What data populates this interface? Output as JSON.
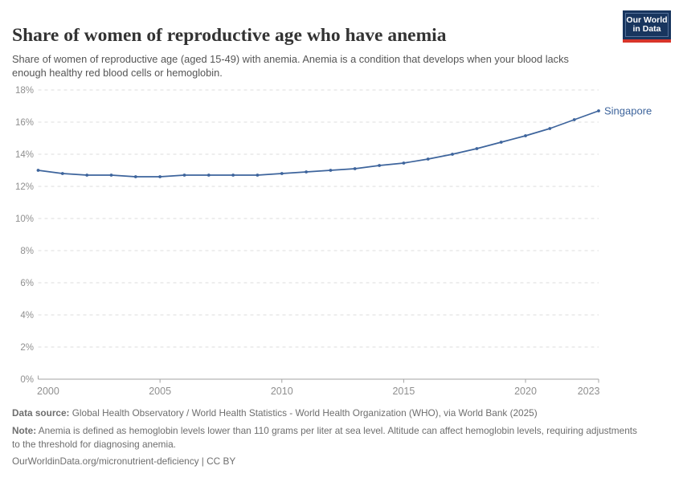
{
  "header": {
    "title": "Share of women of reproductive age who have anemia",
    "subtitle": "Share of women of reproductive age (aged 15-49) with anemia. Anemia is a condition that develops when your blood lacks enough healthy red blood cells or hemoglobin.",
    "logo": {
      "line1": "Our World",
      "line2": "in Data"
    }
  },
  "chart_data": {
    "type": "line",
    "title": "Share of women of reproductive age who have anemia",
    "entity_label": "Singapore",
    "x": [
      2000,
      2001,
      2002,
      2003,
      2004,
      2005,
      2006,
      2007,
      2008,
      2009,
      2010,
      2011,
      2012,
      2013,
      2014,
      2015,
      2016,
      2017,
      2018,
      2019,
      2020,
      2021,
      2022,
      2023
    ],
    "series": [
      {
        "name": "Singapore",
        "values": [
          13.0,
          12.8,
          12.7,
          12.7,
          12.6,
          12.6,
          12.7,
          12.7,
          12.7,
          12.7,
          12.8,
          12.9,
          13.0,
          13.1,
          13.3,
          13.45,
          13.7,
          14.0,
          14.35,
          14.75,
          15.15,
          15.6,
          16.15,
          16.7
        ]
      }
    ],
    "xlim": [
      2000,
      2023
    ],
    "ylim": [
      0,
      18
    ],
    "xticks": [
      2000,
      2005,
      2010,
      2015,
      2020,
      2023
    ],
    "yticks": [
      0,
      2,
      4,
      6,
      8,
      10,
      12,
      14,
      16,
      18
    ],
    "ytick_suffix": "%",
    "grid": "horizontal-dashed",
    "legend_position": "end-of-line",
    "line_color": "#3d649c",
    "grid_color": "#dedede",
    "axis_color": "#a3a3a3",
    "tick_label_color": "#8f8f8f"
  },
  "footer": {
    "datasource_label": "Data source:",
    "datasource_text": " Global Health Observatory / World Health Statistics - World Health Organization (WHO), via World Bank (2025)",
    "note_label": "Note:",
    "note_text": " Anemia is defined as hemoglobin levels lower than 110 grams per liter at sea level. Altitude can affect hemoglobin levels, requiring adjustments to the threshold for diagnosing anemia.",
    "url_line": "OurWorldinData.org/micronutrient-deficiency | CC BY"
  }
}
